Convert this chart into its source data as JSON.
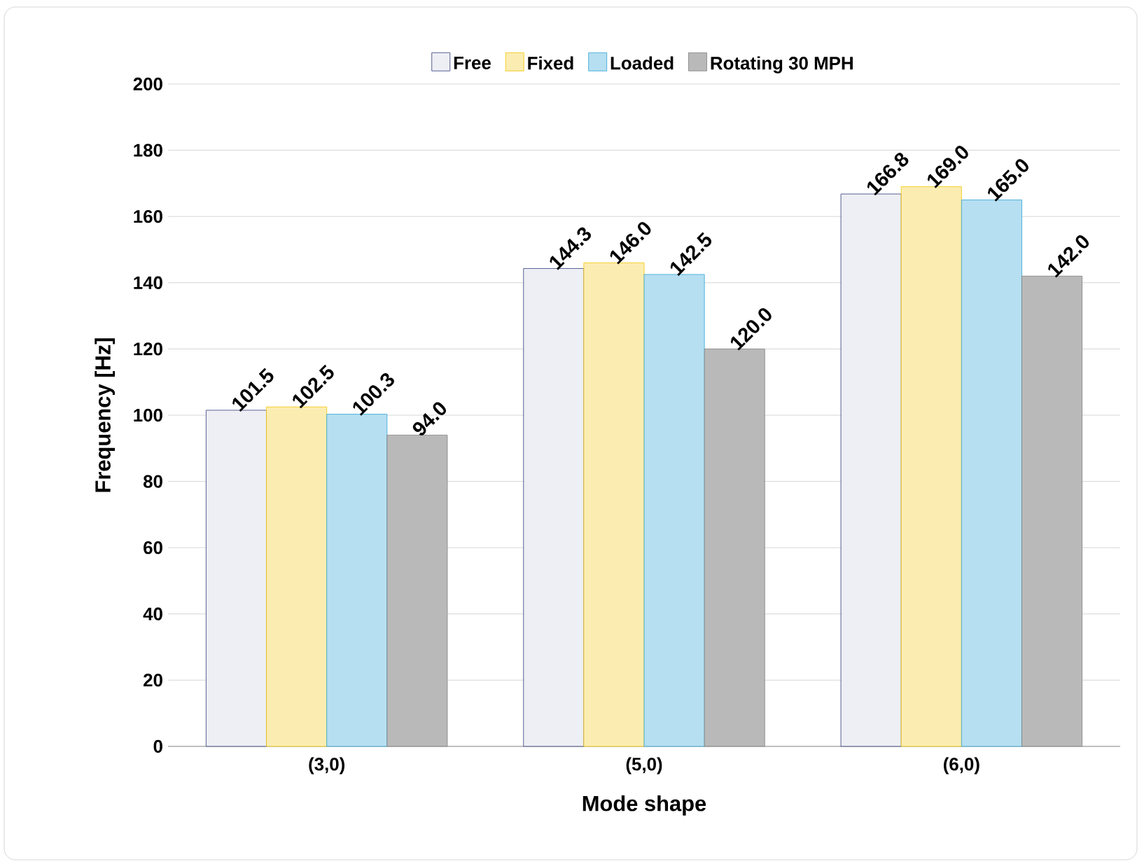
{
  "chart_data": {
    "type": "bar",
    "xlabel": "Mode shape",
    "ylabel": "Frequency [Hz]",
    "categories": [
      "(3,0)",
      "(5,0)",
      "(6,0)"
    ],
    "series": [
      {
        "name": "Free",
        "color": "#2e3a7a",
        "values": [
          101.5,
          144.3,
          166.8
        ],
        "value_labels": [
          "101.5",
          "144.3",
          "166.8"
        ]
      },
      {
        "name": "Fixed",
        "color": "#f2c400",
        "values": [
          102.5,
          146.0,
          169.0
        ],
        "value_labels": [
          "102.5",
          "146.0",
          "169.0"
        ]
      },
      {
        "name": "Loaded",
        "color": "#2ea3d6",
        "values": [
          100.3,
          142.5,
          165.0
        ],
        "value_labels": [
          "100.3",
          "142.5",
          "165.0"
        ]
      },
      {
        "name": "Rotating 30 MPH",
        "color": "#7f7f7f",
        "values": [
          94.0,
          120.0,
          142.0
        ],
        "value_labels": [
          "94.0",
          "120.0",
          "142.0"
        ]
      }
    ],
    "ylim": [
      0,
      200
    ],
    "yticks": [
      0,
      20,
      40,
      60,
      80,
      100,
      120,
      140,
      160,
      180,
      200
    ],
    "grid": "y",
    "legend": "top"
  }
}
